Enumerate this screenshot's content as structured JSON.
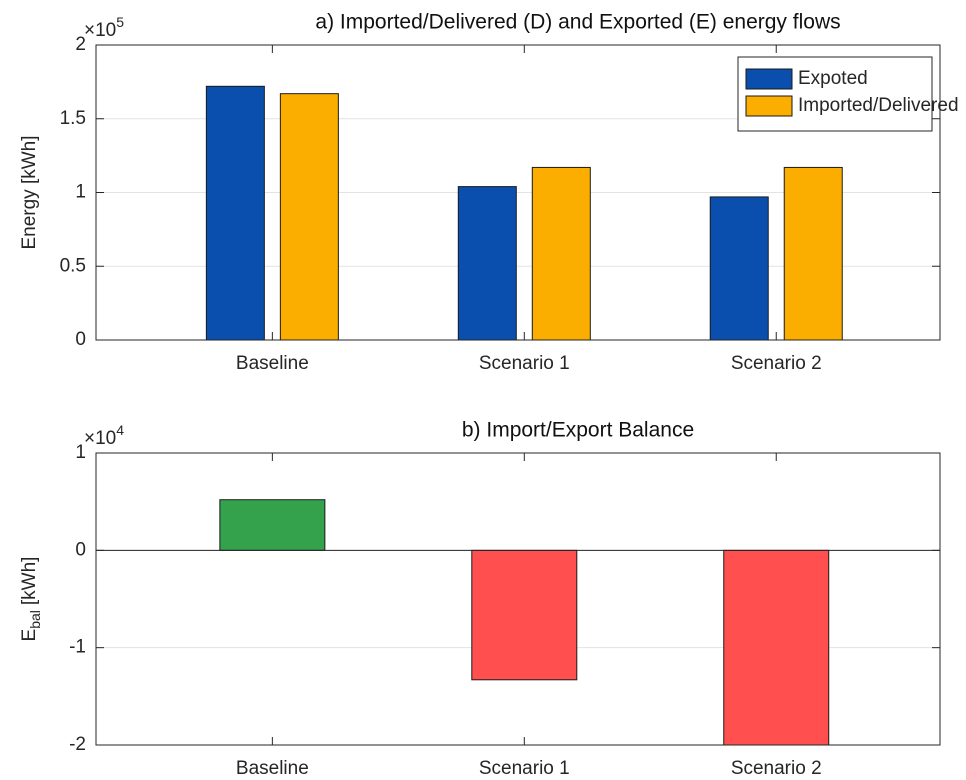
{
  "chart_data": [
    {
      "type": "bar",
      "title": "a) Imported/Delivered (D) and Exported (E) energy flows",
      "y_label": "Energy [kWh]",
      "axis_multiplier": {
        "base": "×10",
        "exponent": "5"
      },
      "categories": [
        "Baseline",
        "Scenario 1",
        "Scenario 2"
      ],
      "series": [
        {
          "name": "Expoted",
          "color": "#0b4fae",
          "values": [
            172000,
            104000,
            97000
          ]
        },
        {
          "name": "Imported/Delivered",
          "color": "#fbae00",
          "values": [
            167000,
            117000,
            117000
          ]
        }
      ],
      "ylim": [
        0,
        200000
      ],
      "yticks": [
        0,
        {
          "value": 50000,
          "label": "0.5"
        },
        {
          "value": 100000,
          "label": "1"
        },
        {
          "value": 150000,
          "label": "1.5"
        },
        {
          "value": 200000,
          "label": "2"
        }
      ],
      "grid": true,
      "legend": "top-right"
    },
    {
      "type": "bar",
      "title": "b) Import/Export Balance",
      "y_label": {
        "symbol": "E",
        "subscript": "bal",
        "unit": "[kWh]"
      },
      "axis_multiplier": {
        "base": "×10",
        "exponent": "4"
      },
      "categories": [
        "Baseline",
        "Scenario 1",
        "Scenario 2"
      ],
      "values": [
        5200,
        -13300,
        -20000
      ],
      "colors": [
        "#34a24c",
        "#ff4f4f",
        "#ff4f4f"
      ],
      "ylim": [
        -20000,
        10000
      ],
      "yticks": [
        {
          "value": -20000,
          "label": "-2"
        },
        {
          "value": -10000,
          "label": "-1"
        },
        0,
        {
          "value": 10000,
          "label": "1"
        }
      ],
      "grid": true
    }
  ]
}
